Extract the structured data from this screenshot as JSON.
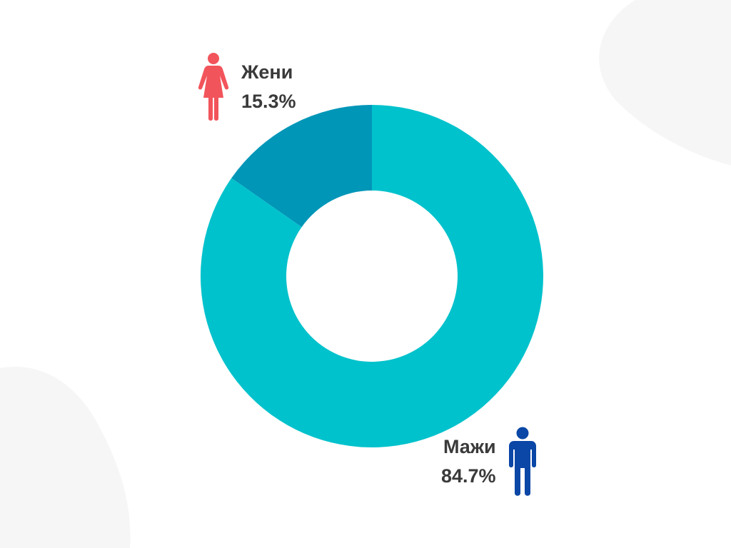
{
  "chart_data": {
    "type": "pie",
    "variant": "donut",
    "title": "",
    "categories": [
      "Жени",
      "Мажи"
    ],
    "values": [
      15.3,
      84.7
    ],
    "value_labels": [
      "15.3%",
      "84.7%"
    ],
    "colors": [
      "#0096b8",
      "#00c2cc"
    ],
    "legend": [
      {
        "label": "Жени",
        "value": "15.3%",
        "icon": "female-figure-icon",
        "icon_color": "#f2545b"
      },
      {
        "label": "Мажи",
        "value": "84.7%",
        "icon": "male-figure-icon",
        "icon_color": "#0a47a6"
      }
    ]
  }
}
